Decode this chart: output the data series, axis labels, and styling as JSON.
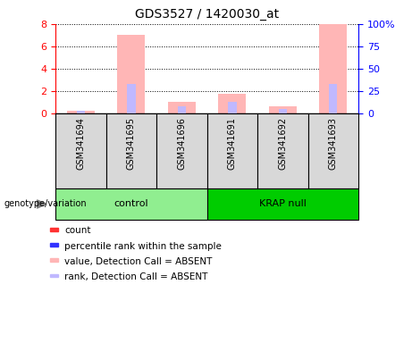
{
  "title": "GDS3527 / 1420030_at",
  "samples": [
    "GSM341694",
    "GSM341695",
    "GSM341696",
    "GSM341691",
    "GSM341692",
    "GSM341693"
  ],
  "groups": [
    {
      "name": "control",
      "indices": [
        0,
        1,
        2
      ],
      "color": "#90ee90"
    },
    {
      "name": "KRAP null",
      "indices": [
        3,
        4,
        5
      ],
      "color": "#00cc00"
    }
  ],
  "left_yaxis_ticks": [
    0,
    2,
    4,
    6,
    8
  ],
  "right_yaxis_ticks": [
    0,
    25,
    50,
    75,
    100
  ],
  "right_yaxis_labels": [
    "0",
    "25",
    "50",
    "75",
    "100%"
  ],
  "ylim": [
    0,
    8
  ],
  "right_ylim": [
    0,
    100
  ],
  "absent_value": [
    0.25,
    7.0,
    1.0,
    1.75,
    0.6,
    8.0
  ],
  "absent_rank_pct": [
    3.2,
    32.5,
    7.5,
    13.1,
    4.4,
    33.1
  ],
  "absent_value_color": "#ffb6b6",
  "absent_rank_color": "#c0b8ff",
  "present_value_color": "#ff4444",
  "present_rank_color": "#4444ff",
  "group_label_text": "genotype/variation",
  "legend": [
    {
      "label": "count",
      "color": "#ff3333"
    },
    {
      "label": "percentile rank within the sample",
      "color": "#3333ff"
    },
    {
      "label": "value, Detection Call = ABSENT",
      "color": "#ffb6b6"
    },
    {
      "label": "rank, Detection Call = ABSENT",
      "color": "#c0b8ff"
    }
  ],
  "background_color": "#ffffff",
  "plot_bg": "#ffffff",
  "gray_box_color": "#d8d8d8",
  "title_fontsize": 10,
  "tick_fontsize": 8,
  "label_fontsize": 8,
  "legend_fontsize": 7.5
}
